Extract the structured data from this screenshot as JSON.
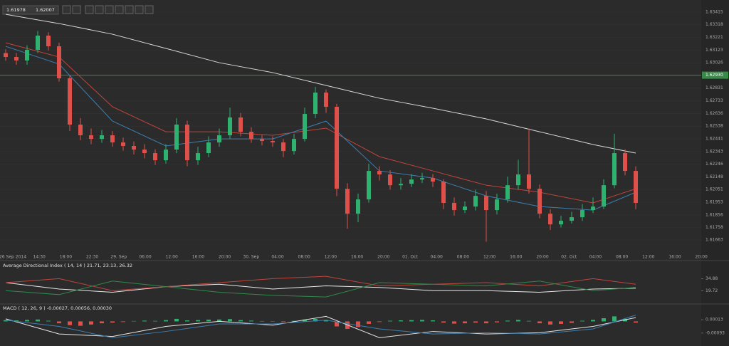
{
  "toolbar": {
    "bid": 1.61978,
    "ask": 1.62007
  },
  "chart_data": [
    {
      "type": "candlestick",
      "x_labels": [
        "26 Sep 2014",
        "14:30",
        "18:00",
        "22:30",
        "29. Sep",
        "06:00",
        "12:00",
        "16:00",
        "20:00",
        "30. Sep",
        "04:00",
        "08:00",
        "12:00",
        "16:00",
        "20:00",
        "01. Oct",
        "04:00",
        "08:00",
        "12:00",
        "16:00",
        "20:00",
        "02. Oct",
        "04:00",
        "08:00",
        "12:00",
        "16:00",
        "20:00"
      ],
      "up_color": "#2fb170",
      "down_color": "#e0504a",
      "candles": [
        [
          1.631,
          1.6313,
          1.6304,
          1.6307
        ],
        [
          1.6307,
          1.631,
          1.6301,
          1.63043
        ],
        [
          1.63043,
          1.6316,
          1.6301,
          1.63125
        ],
        [
          1.63125,
          1.6327,
          1.631,
          1.63234
        ],
        [
          1.63234,
          1.6326,
          1.6312,
          1.63152
        ],
        [
          1.63152,
          1.6318,
          1.6288,
          1.62906
        ],
        [
          1.62906,
          1.6293,
          1.625,
          1.6255
        ],
        [
          1.6255,
          1.626,
          1.6243,
          1.62468
        ],
        [
          1.62468,
          1.6252,
          1.624,
          1.6244
        ],
        [
          1.6244,
          1.6251,
          1.6241,
          1.62468
        ],
        [
          1.62468,
          1.625,
          1.6238,
          1.62413
        ],
        [
          1.62413,
          1.6245,
          1.6235,
          1.62386
        ],
        [
          1.62386,
          1.6242,
          1.6232,
          1.62358
        ],
        [
          1.62358,
          1.624,
          1.6229,
          1.62331
        ],
        [
          1.62331,
          1.6236,
          1.6224,
          1.62276
        ],
        [
          1.62276,
          1.624,
          1.6225,
          1.62358
        ],
        [
          1.62358,
          1.626,
          1.6233,
          1.6255
        ],
        [
          1.6255,
          1.6258,
          1.6223,
          1.62276
        ],
        [
          1.62276,
          1.6238,
          1.6224,
          1.62331
        ],
        [
          1.62331,
          1.6246,
          1.623,
          1.62413
        ],
        [
          1.62413,
          1.6252,
          1.6238,
          1.62468
        ],
        [
          1.62468,
          1.6268,
          1.6244,
          1.62605
        ],
        [
          1.62605,
          1.6264,
          1.6246,
          1.62495
        ],
        [
          1.62495,
          1.6253,
          1.6241,
          1.6244
        ],
        [
          1.6244,
          1.6247,
          1.6239,
          1.62424
        ],
        [
          1.62424,
          1.6246,
          1.6238,
          1.62413
        ],
        [
          1.62413,
          1.6244,
          1.623,
          1.62347
        ],
        [
          1.62347,
          1.6248,
          1.6232,
          1.6244
        ],
        [
          1.6244,
          1.6268,
          1.6242,
          1.62632
        ],
        [
          1.62632,
          1.6284,
          1.626,
          1.62796
        ],
        [
          1.62796,
          1.6282,
          1.6264,
          1.62687
        ],
        [
          1.62687,
          1.6271,
          1.62,
          1.62057
        ],
        [
          1.62057,
          1.621,
          1.6175,
          1.61865
        ],
        [
          1.61865,
          1.6202,
          1.618,
          1.61975
        ],
        [
          1.61975,
          1.6225,
          1.6195,
          1.62194
        ],
        [
          1.62194,
          1.6223,
          1.6212,
          1.62167
        ],
        [
          1.62167,
          1.622,
          1.6205,
          1.62084
        ],
        [
          1.62084,
          1.6214,
          1.6205,
          1.62095
        ],
        [
          1.62095,
          1.6217,
          1.6207,
          1.62128
        ],
        [
          1.62128,
          1.6218,
          1.621,
          1.62139
        ],
        [
          1.62139,
          1.6217,
          1.6207,
          1.62112
        ],
        [
          1.62112,
          1.6213,
          1.619,
          1.61948
        ],
        [
          1.61948,
          1.6199,
          1.6185,
          1.61893
        ],
        [
          1.61893,
          1.6196,
          1.6187,
          1.6192
        ],
        [
          1.6192,
          1.6205,
          1.6189,
          1.62002
        ],
        [
          1.62002,
          1.6204,
          1.6165,
          1.61893
        ],
        [
          1.61893,
          1.6202,
          1.6186,
          1.61975
        ],
        [
          1.61975,
          1.6215,
          1.6195,
          1.62084
        ],
        [
          1.62084,
          1.6228,
          1.6205,
          1.62167
        ],
        [
          1.62167,
          1.6252,
          1.6202,
          1.62057
        ],
        [
          1.62057,
          1.6209,
          1.6183,
          1.61865
        ],
        [
          1.61865,
          1.619,
          1.6174,
          1.61783
        ],
        [
          1.61783,
          1.6185,
          1.6176,
          1.61811
        ],
        [
          1.61811,
          1.6188,
          1.6179,
          1.61838
        ],
        [
          1.61838,
          1.6194,
          1.6181,
          1.61893
        ],
        [
          1.61893,
          1.6199,
          1.6187,
          1.6192
        ],
        [
          1.6192,
          1.6213,
          1.619,
          1.62084
        ],
        [
          1.62084,
          1.6248,
          1.6206,
          1.62331
        ],
        [
          1.62331,
          1.6236,
          1.6216,
          1.62194
        ],
        [
          1.62194,
          1.6223,
          1.619,
          1.61948
        ]
      ],
      "lines": [
        {
          "color": "#d8d8d8",
          "x": [
            0,
            5,
            10,
            15,
            20,
            25,
            30,
            35,
            40,
            45,
            50,
            55,
            59
          ],
          "values": [
            1.63398,
            1.63327,
            1.63245,
            1.63136,
            1.63026,
            1.6295,
            1.62851,
            1.62753,
            1.62676,
            1.62594,
            1.62495,
            1.62397,
            1.62331
          ]
        },
        {
          "color": "#c0453c",
          "x": [
            0,
            5,
            10,
            15,
            20,
            25,
            30,
            35,
            40,
            45,
            50,
            55,
            59
          ],
          "values": [
            1.63179,
            1.6307,
            1.62687,
            1.62495,
            1.62495,
            1.62468,
            1.62523,
            1.62304,
            1.62194,
            1.62084,
            1.6203,
            1.61948,
            1.62057
          ]
        },
        {
          "color": "#3d7fb0",
          "x": [
            0,
            5,
            10,
            15,
            20,
            25,
            30,
            35,
            40,
            45,
            50,
            55,
            59
          ],
          "values": [
            1.63152,
            1.63015,
            1.62577,
            1.62386,
            1.6244,
            1.6244,
            1.62577,
            1.62194,
            1.62139,
            1.62002,
            1.6192,
            1.61893,
            1.6203
          ]
        }
      ],
      "hline": 1.6293,
      "hline_color": "#3a8a4a",
      "ylim": [
        1.61565,
        1.63508
      ],
      "yticks": [
        1.63415,
        1.63318,
        1.63221,
        1.63123,
        1.63026,
        {
          "value": 1.6293,
          "label": "1.62930"
        },
        1.62831,
        1.62733,
        1.62636,
        1.62538,
        1.62441,
        1.62343,
        1.62246,
        1.62148,
        1.62051,
        1.61953,
        1.61856,
        1.61758,
        1.61663
      ],
      "grid": true
    },
    {
      "type": "line",
      "title": "Average Directional Index ( 14, 14 ) 21.71, 23.13, 26.32",
      "lines": [
        {
          "color": "#e8e8e8",
          "x": [
            0,
            5,
            10,
            15,
            20,
            25,
            30,
            35,
            40,
            45,
            50,
            55,
            59
          ],
          "values": [
            30,
            22,
            18,
            25,
            28,
            22,
            26,
            24,
            20,
            20,
            18,
            22,
            23
          ]
        },
        {
          "color": "#c0453c",
          "x": [
            0,
            5,
            10,
            15,
            20,
            25,
            30,
            35,
            40,
            45,
            50,
            55,
            59
          ],
          "values": [
            30,
            35,
            20,
            25,
            30,
            35,
            38,
            26,
            28,
            30,
            26,
            35,
            28
          ]
        },
        {
          "color": "#2f8a4a",
          "x": [
            0,
            5,
            10,
            15,
            20,
            25,
            30,
            35,
            40,
            45,
            50,
            55,
            59
          ],
          "values": [
            20,
            15,
            32,
            25,
            18,
            14,
            12,
            30,
            28,
            26,
            32,
            20,
            24
          ]
        }
      ],
      "ylim": [
        5,
        47
      ],
      "yticks": [
        19.72,
        34.88
      ]
    },
    {
      "type": "macd",
      "title": "MACD ( 12, 26, 9 ) -0.00027, 0.00056, 0.00030",
      "up_color": "#2fb170",
      "down_color": "#e0504a",
      "histogram": [
        0.0001,
        8e-05,
        0.00012,
        0.00015,
        5e-05,
        -0.00015,
        -0.0003,
        -0.00035,
        -0.00025,
        -0.00015,
        -0.0001,
        -5e-05,
        3e-05,
        6e-05,
        4e-05,
        0.0001,
        0.0002,
        8e-05,
        0.0001,
        0.00014,
        0.00015,
        0.00018,
        0.0001,
        6e-05,
        3e-05,
        -2e-05,
        -5e-05,
        4e-05,
        0.00015,
        0.0002,
        0.00012,
        -0.0004,
        -0.0006,
        -0.00045,
        -0.0002,
        -5e-05,
        5e-05,
        8e-05,
        0.0001,
        0.00012,
        8e-05,
        -0.0001,
        -0.00018,
        -0.00015,
        -0.0001,
        -0.00015,
        -8e-05,
        6e-05,
        0.00012,
        4e-05,
        -0.00015,
        -0.00025,
        -0.0002,
        -0.00012,
        5e-05,
        0.00012,
        0.00025,
        0.0004,
        0.0002,
        -0.0001
      ],
      "lines": [
        {
          "color": "#e8e8e8",
          "x": [
            0,
            5,
            10,
            15,
            20,
            25,
            30,
            35,
            40,
            45,
            50,
            55,
            59
          ],
          "values": [
            0.0002,
            -0.001,
            -0.0012,
            -0.0004,
            0,
            -0.0003,
            0.0004,
            -0.0013,
            -0.0008,
            -0.001,
            -0.0009,
            -0.0004,
            0.0003
          ]
        },
        {
          "color": "#3d7fb0",
          "x": [
            0,
            5,
            10,
            15,
            20,
            25,
            30,
            35,
            40,
            45,
            50,
            55,
            59
          ],
          "values": [
            0.0001,
            -0.0004,
            -0.0013,
            -0.0008,
            -0.0002,
            -0.0002,
            0.0001,
            -0.0006,
            -0.001,
            -0.0009,
            -0.001,
            -0.0006,
            0.0005
          ]
        }
      ],
      "ylim": [
        -0.0019,
        0.00076
      ],
      "yticks": [
        -0.00093,
        0.00013
      ]
    }
  ]
}
